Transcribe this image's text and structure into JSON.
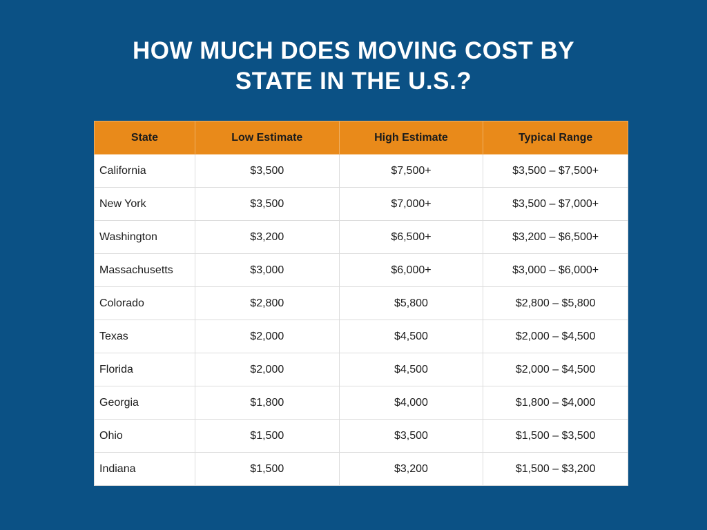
{
  "title": "HOW MUCH DOES MOVING COST BY STATE IN THE U.S.?",
  "table": {
    "header": [
      "State",
      "Low Estimate",
      "High Estimate",
      "Typical Range"
    ],
    "rows": [
      [
        "California",
        "$3,500",
        "$7,500+",
        "$3,500 – $7,500+"
      ],
      [
        "New York",
        "$3,500",
        "$7,000+",
        "$3,500 – $7,000+"
      ],
      [
        "Washington",
        "$3,200",
        "$6,500+",
        "$3,200 – $6,500+"
      ],
      [
        "Massachusetts",
        "$3,000",
        "$6,000+",
        "$3,000 – $6,000+"
      ],
      [
        "Colorado",
        "$2,800",
        "$5,800",
        "$2,800 – $5,800"
      ],
      [
        "Texas",
        "$2,000",
        "$4,500",
        "$2,000 – $4,500"
      ],
      [
        "Florida",
        "$2,000",
        "$4,500",
        "$2,000 – $4,500"
      ],
      [
        "Georgia",
        "$1,800",
        "$4,000",
        "$1,800 – $4,000"
      ],
      [
        "Ohio",
        "$1,500",
        "$3,500",
        "$1,500 – $3,500"
      ],
      [
        "Indiana",
        "$1,500",
        "$3,200",
        "$1,500 – $3,200"
      ]
    ]
  }
}
